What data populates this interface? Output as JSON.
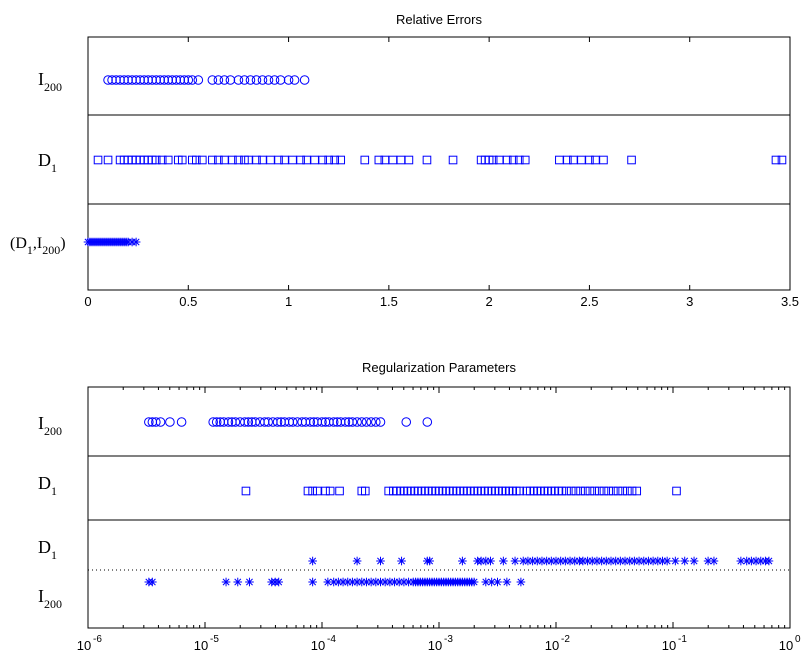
{
  "chart_data": [
    {
      "type": "scatter",
      "title": "Relative Errors",
      "xscale": "linear",
      "xlim": [
        0,
        3.5
      ],
      "xticks": [
        "0",
        "0.5",
        "1",
        "1.5",
        "2",
        "2.5",
        "3",
        "3.5"
      ],
      "tick_values": [
        0,
        0.5,
        1,
        1.5,
        2,
        2.5,
        3,
        3.5
      ],
      "rows": [
        {
          "label_main": "I",
          "label_sub": "200",
          "label_pre": "",
          "label_mid": "",
          "label_post": "",
          "label_sub2": "",
          "marker": "circle",
          "points": [
            0.1,
            0.12,
            0.14,
            0.16,
            0.18,
            0.2,
            0.22,
            0.24,
            0.26,
            0.28,
            0.3,
            0.32,
            0.34,
            0.36,
            0.38,
            0.4,
            0.42,
            0.44,
            0.46,
            0.48,
            0.5,
            0.52,
            0.55,
            0.62,
            0.65,
            0.68,
            0.71,
            0.75,
            0.78,
            0.81,
            0.84,
            0.87,
            0.9,
            0.93,
            0.96,
            1.0,
            1.03,
            1.08
          ]
        },
        {
          "label_main": "D",
          "label_sub": "1",
          "label_pre": "",
          "label_mid": "",
          "label_post": "",
          "label_sub2": "",
          "marker": "square",
          "points": [
            0.05,
            0.1,
            0.16,
            0.18,
            0.2,
            0.22,
            0.24,
            0.26,
            0.28,
            0.3,
            0.32,
            0.34,
            0.37,
            0.4,
            0.45,
            0.47,
            0.52,
            0.54,
            0.57,
            0.62,
            0.65,
            0.68,
            0.72,
            0.75,
            0.78,
            0.8,
            0.84,
            0.87,
            0.91,
            0.95,
            0.98,
            1.02,
            1.06,
            1.09,
            1.13,
            1.17,
            1.2,
            1.23,
            1.26,
            1.38,
            1.45,
            1.48,
            1.52,
            1.56,
            1.6,
            1.69,
            1.82,
            1.96,
            1.98,
            2.0,
            2.02,
            2.05,
            2.09,
            2.12,
            2.15,
            2.18,
            2.35,
            2.39,
            2.42,
            2.46,
            2.5,
            2.53,
            2.57,
            2.71,
            3.43,
            3.46
          ]
        },
        {
          "label_main": "(D",
          "label_sub": "1",
          "label_pre": "(",
          "label_mid": ",I",
          "label_post": ")",
          "label_sub2": "200",
          "marker": "star",
          "points": [
            0.0,
            0.01,
            0.02,
            0.03,
            0.04,
            0.05,
            0.06,
            0.07,
            0.08,
            0.09,
            0.1,
            0.11,
            0.12,
            0.13,
            0.14,
            0.15,
            0.16,
            0.17,
            0.18,
            0.19,
            0.2,
            0.22,
            0.24
          ]
        }
      ]
    },
    {
      "type": "scatter",
      "title": "Regularization Parameters",
      "xscale": "log",
      "xlim": [
        1e-06,
        1
      ],
      "xticks_base": [
        "10",
        "10",
        "10",
        "10",
        "10",
        "10",
        "10"
      ],
      "xticks_exp": [
        "-6",
        "-5",
        "-4",
        "-3",
        "-2",
        "-1",
        "0"
      ],
      "tick_values": [
        -6,
        -5,
        -4,
        -3,
        -2,
        -1,
        0
      ],
      "rows": [
        {
          "label_main": "I",
          "label_sub": "200",
          "marker": "circle",
          "points_log10": [
            -5.48,
            -5.45,
            -5.42,
            -5.38,
            -5.3,
            -5.2,
            -4.93,
            -4.9,
            -4.87,
            -4.84,
            -4.8,
            -4.77,
            -4.74,
            -4.7,
            -4.66,
            -4.63,
            -4.6,
            -4.57,
            -4.53,
            -4.49,
            -4.46,
            -4.42,
            -4.38,
            -4.35,
            -4.32,
            -4.28,
            -4.25,
            -4.21,
            -4.17,
            -4.14,
            -4.1,
            -4.07,
            -4.04,
            -4.0,
            -3.97,
            -3.94,
            -3.9,
            -3.87,
            -3.84,
            -3.8,
            -3.77,
            -3.74,
            -3.7,
            -3.66,
            -3.62,
            -3.58,
            -3.54,
            -3.5,
            -3.28,
            -3.1
          ]
        },
        {
          "label_main": "D",
          "label_sub": "1",
          "marker": "square",
          "points_log10": [
            -4.65,
            -4.12,
            -4.08,
            -4.04,
            -3.97,
            -3.93,
            -3.85,
            -3.66,
            -3.63,
            -3.43,
            -3.39,
            -3.36,
            -3.33,
            -3.3,
            -3.27,
            -3.24,
            -3.21,
            -3.18,
            -3.15,
            -3.12,
            -3.09,
            -3.06,
            -3.03,
            -3.0,
            -2.97,
            -2.94,
            -2.91,
            -2.88,
            -2.85,
            -2.82,
            -2.79,
            -2.76,
            -2.73,
            -2.7,
            -2.67,
            -2.64,
            -2.61,
            -2.58,
            -2.55,
            -2.52,
            -2.49,
            -2.46,
            -2.43,
            -2.4,
            -2.37,
            -2.34,
            -2.31,
            -2.25,
            -2.22,
            -2.19,
            -2.16,
            -2.13,
            -2.1,
            -2.07,
            -2.04,
            -2.01,
            -1.98,
            -1.95,
            -1.91,
            -1.87,
            -1.83,
            -1.79,
            -1.75,
            -1.71,
            -1.67,
            -1.63,
            -1.59,
            -1.55,
            -1.51,
            -1.47,
            -1.43,
            -1.39,
            -1.35,
            -1.31,
            -0.97
          ]
        },
        {
          "label_main": "D",
          "label_sub": "1",
          "marker": "star",
          "label2_main": "I",
          "label2_sub": "200",
          "points_log10_upper": [
            -4.08,
            -3.7,
            -3.5,
            -3.32,
            -3.1,
            -3.08,
            -2.8,
            -2.67,
            -2.64,
            -2.6,
            -2.56,
            -2.45,
            -2.35,
            -2.28,
            -2.24,
            -2.2,
            -2.16,
            -2.12,
            -2.08,
            -2.04,
            -2.0,
            -1.96,
            -1.92,
            -1.88,
            -1.84,
            -1.8,
            -1.77,
            -1.73,
            -1.69,
            -1.65,
            -1.61,
            -1.57,
            -1.53,
            -1.49,
            -1.45,
            -1.41,
            -1.37,
            -1.33,
            -1.29,
            -1.25,
            -1.21,
            -1.17,
            -1.13,
            -1.09,
            -1.05,
            -0.98,
            -0.9,
            -0.82,
            -0.7,
            -0.65,
            -0.42,
            -0.37,
            -0.33,
            -0.29,
            -0.25,
            -0.21,
            -0.18
          ],
          "points_log10_lower": [
            -5.48,
            -5.45,
            -4.82,
            -4.72,
            -4.62,
            -4.43,
            -4.4,
            -4.37,
            -4.08,
            -3.95,
            -3.9,
            -3.86,
            -3.82,
            -3.78,
            -3.74,
            -3.7,
            -3.66,
            -3.62,
            -3.58,
            -3.54,
            -3.5,
            -3.46,
            -3.42,
            -3.38,
            -3.34,
            -3.3,
            -3.26,
            -3.22,
            -3.2,
            -3.18,
            -3.16,
            -3.14,
            -3.12,
            -3.1,
            -3.08,
            -3.06,
            -3.04,
            -3.02,
            -3.0,
            -2.98,
            -2.96,
            -2.94,
            -2.92,
            -2.9,
            -2.88,
            -2.86,
            -2.84,
            -2.82,
            -2.8,
            -2.78,
            -2.76,
            -2.74,
            -2.72,
            -2.7,
            -2.6,
            -2.55,
            -2.5,
            -2.42,
            -2.3
          ]
        }
      ]
    }
  ],
  "colors": {
    "marker": "#0000ff",
    "axis": "#000000",
    "dotted": "#000000"
  }
}
